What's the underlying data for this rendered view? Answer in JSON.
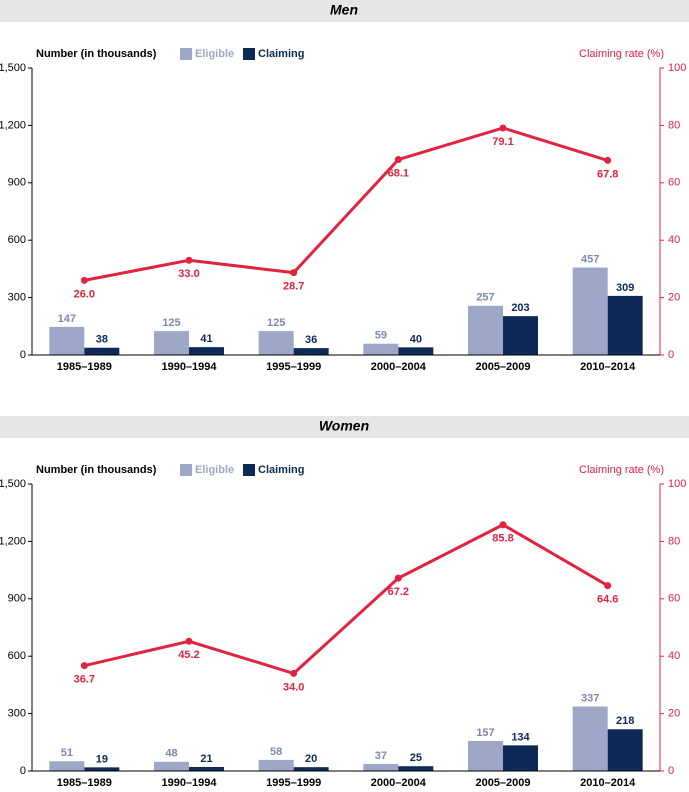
{
  "chart_data": [
    {
      "type": "bar",
      "title": "Men",
      "y_label": "Number (in thousands)",
      "y2_label": "Claiming rate (%)",
      "categories": [
        "1985–1989",
        "1990–1994",
        "1995–1999",
        "2000–2004",
        "2005–2009",
        "2010–2014"
      ],
      "series": [
        {
          "name": "Eligible",
          "color": "#9ea7c8",
          "values": [
            147,
            125,
            125,
            59,
            257,
            457
          ]
        },
        {
          "name": "Claiming",
          "color": "#0d2a56",
          "values": [
            38,
            41,
            36,
            40,
            203,
            309
          ]
        },
        {
          "type": "line",
          "axis": "y2",
          "color": "#e0243f",
          "values": [
            26.0,
            33.0,
            28.7,
            68.1,
            79.1,
            67.8
          ],
          "value_labels": [
            "26.0",
            "33.0",
            "28.7",
            "68.1",
            "79.1",
            "67.8"
          ]
        }
      ],
      "ylim": [
        0,
        1500
      ],
      "yticks": [
        0,
        300,
        600,
        900,
        {
          "value": 1200,
          "label": "1,200"
        },
        {
          "value": 1500,
          "label": "1,500"
        }
      ],
      "y2lim": [
        0,
        100
      ],
      "y2ticks": [
        0,
        20,
        40,
        60,
        80,
        100
      ]
    },
    {
      "type": "bar",
      "title": "Women",
      "y_label": "Number (in thousands)",
      "y2_label": "Claiming rate (%)",
      "categories": [
        "1985–1989",
        "1990–1994",
        "1995–1999",
        "2000–2004",
        "2005–2009",
        "2010–2014"
      ],
      "series": [
        {
          "name": "Eligible",
          "color": "#9ea7c8",
          "values": [
            51,
            48,
            58,
            37,
            157,
            337
          ]
        },
        {
          "name": "Claiming",
          "color": "#0d2a56",
          "values": [
            19,
            21,
            20,
            25,
            134,
            218
          ]
        },
        {
          "type": "line",
          "axis": "y2",
          "color": "#e0243f",
          "values": [
            36.7,
            45.2,
            34.0,
            67.2,
            85.8,
            64.6
          ],
          "value_labels": [
            "36.7",
            "45.2",
            "34.0",
            "67.2",
            "85.8",
            "64.6"
          ]
        }
      ],
      "ylim": [
        0,
        1500
      ],
      "yticks": [
        0,
        300,
        600,
        900,
        {
          "value": 1200,
          "label": "1,200"
        },
        {
          "value": 1500,
          "label": "1,500"
        }
      ],
      "y2lim": [
        0,
        100
      ],
      "y2ticks": [
        0,
        20,
        40,
        60,
        80,
        100
      ]
    }
  ]
}
